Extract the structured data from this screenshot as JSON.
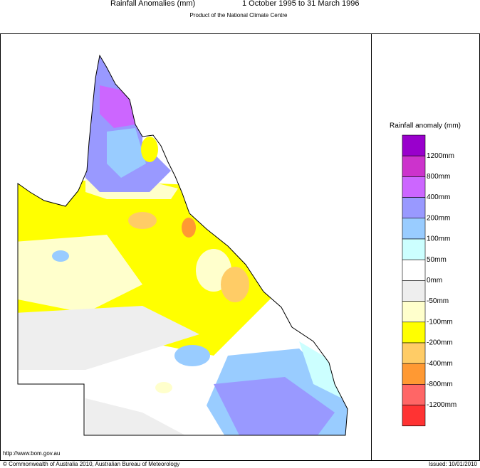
{
  "header": {
    "title": "Rainfall Anomalies (mm)",
    "period": "1 October 1995 to 31 March 1996",
    "subtitle": "Product of the National Climate Centre"
  },
  "legend": {
    "title": "Rainfall anomaly (mm)",
    "colors": [
      "#9900cc",
      "#cc33cc",
      "#cc66ff",
      "#9999ff",
      "#99ccff",
      "#ccffff",
      "#ffffff",
      "#eeeeee",
      "#ffffcc",
      "#ffff00",
      "#ffcc66",
      "#ff9933",
      "#ff6666",
      "#ff3333"
    ],
    "labels": [
      "1200mm",
      "800mm",
      "400mm",
      "200mm",
      "100mm",
      "50mm",
      "0mm",
      "-50mm",
      "-100mm",
      "-200mm",
      "-400mm",
      "-800mm",
      "-1200mm"
    ]
  },
  "footer": {
    "url": "http://www.bom.gov.au",
    "copyright": "© Commonwealth of Australia 2010, Australian Bureau of Meteorology",
    "issued": "Issued: 10/01/2010"
  }
}
